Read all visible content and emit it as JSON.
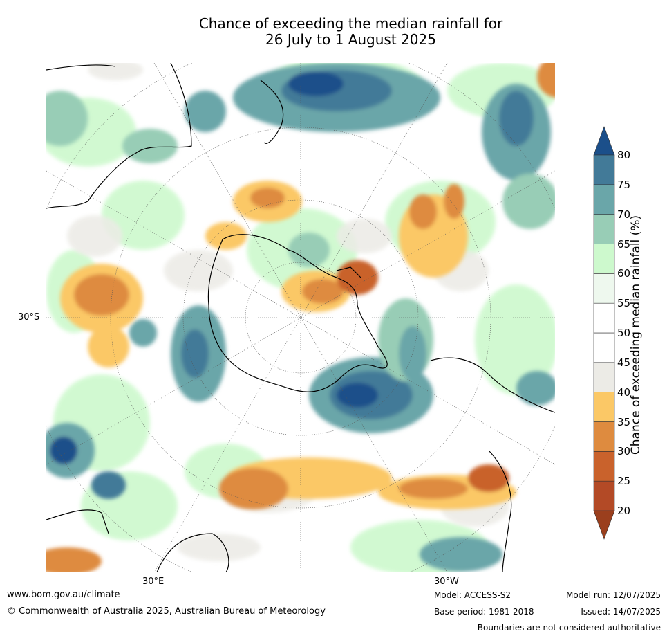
{
  "title": {
    "line1": "Chance of exceeding the median rainfall for",
    "line2": "26 July to 1 August 2025"
  },
  "map": {
    "lat_label": "30°S",
    "lon_labels": {
      "east": "30°E",
      "west": "30°W"
    }
  },
  "colorbar": {
    "title": "Chance of exceeding median rainfall (%)",
    "ticks": [
      "20",
      "25",
      "30",
      "35",
      "40",
      "45",
      "50",
      "55",
      "60",
      "65",
      "70",
      "75",
      "80"
    ],
    "colors": [
      "#9b3f1d",
      "#b34a26",
      "#c9622c",
      "#de8b3f",
      "#fbc866",
      "#ecebe6",
      "#ffffff",
      "#ffffff",
      "#eef8ee",
      "#cdf9cd",
      "#98cdb6",
      "#6aa6a9",
      "#427a98",
      "#1b4f8a"
    ]
  },
  "footer": {
    "website": "www.bom.gov.au/climate",
    "copyright": "© Commonwealth of Australia 2025, Australian Bureau of Meteorology",
    "model": "Model: ACCESS-S2",
    "base_period": "Base period: 1981-2018",
    "model_run": "Model run: 12/07/2025",
    "issued": "Issued: 14/07/2025",
    "disclaimer": "Boundaries are not considered authoritative"
  }
}
